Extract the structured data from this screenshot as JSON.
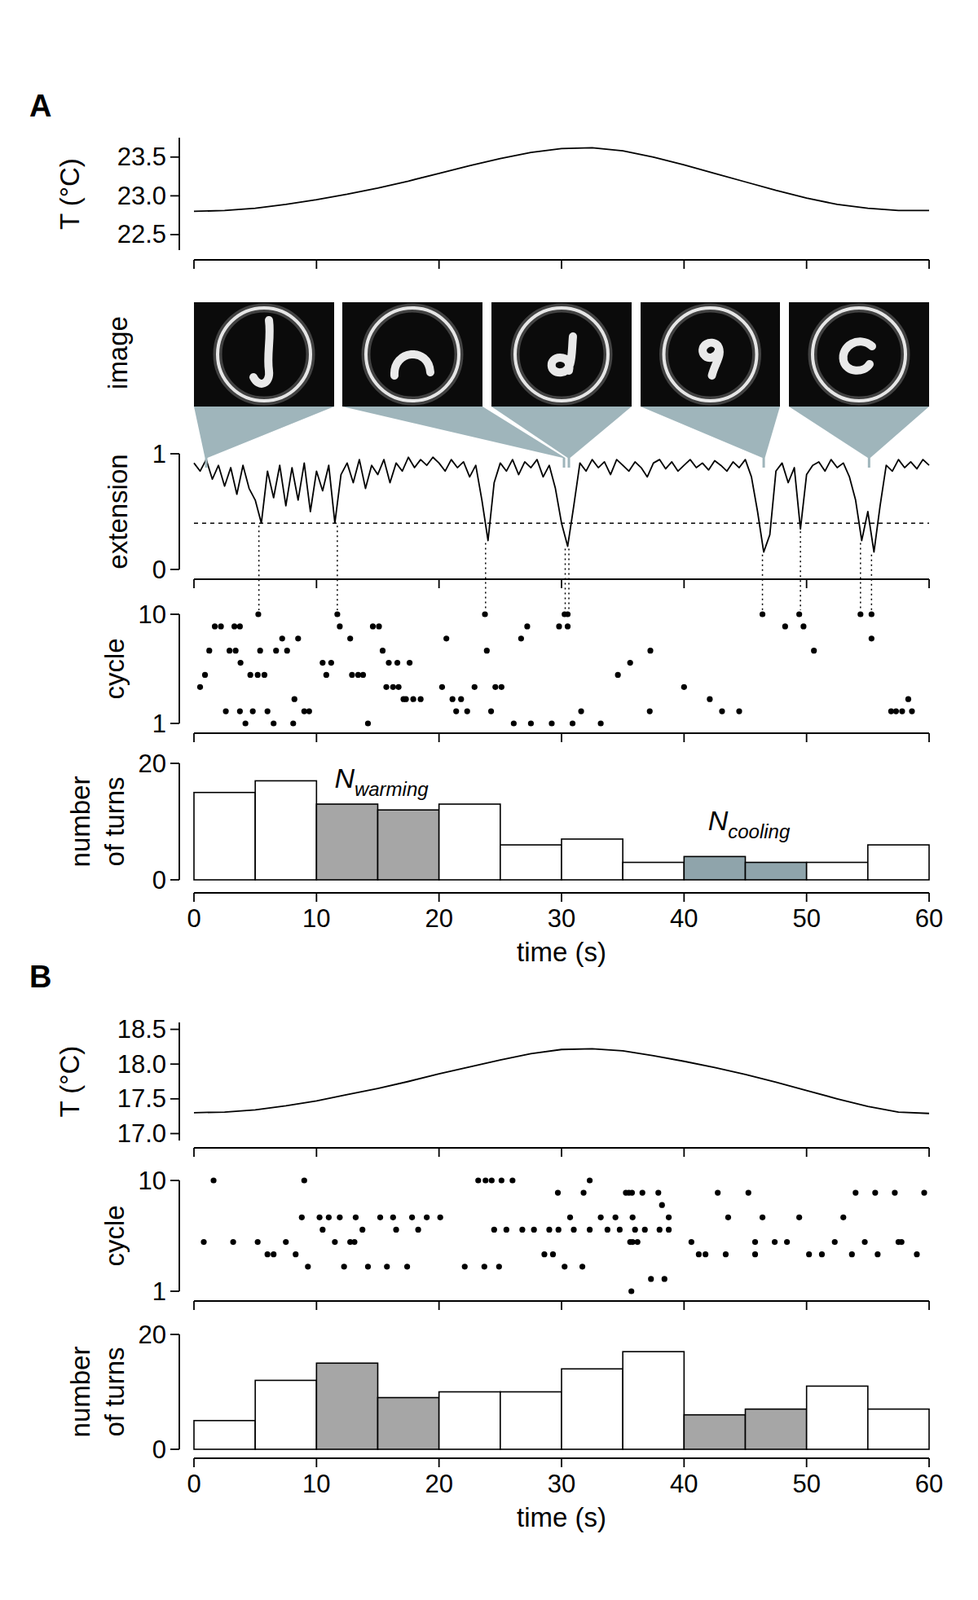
{
  "panels": [
    "A",
    "B"
  ],
  "images": {
    "label": "image",
    "times": [
      1,
      30.2,
      30.6,
      46.5,
      55.1
    ]
  },
  "chart_data": [
    {
      "type": "line",
      "ylabel": "T (°C)",
      "xlim": [
        0,
        60
      ],
      "xticks": [
        0,
        10,
        20,
        30,
        40,
        50,
        60
      ],
      "ylim": [
        22.3,
        23.75
      ],
      "yticks": [
        22.5,
        {
          "value": 23,
          "label": "23.0"
        },
        23.5
      ],
      "tick_labels": "y",
      "color": "#000000",
      "x": [
        0,
        2.5,
        5,
        7.5,
        10,
        12.5,
        15,
        17.5,
        20,
        22.5,
        25,
        27.5,
        30,
        32.5,
        35,
        37.5,
        40,
        42.5,
        45,
        47.5,
        50,
        52.5,
        55,
        57.5,
        60
      ],
      "values": [
        22.8,
        22.81,
        22.84,
        22.89,
        22.95,
        23.02,
        23.1,
        23.19,
        23.29,
        23.39,
        23.48,
        23.56,
        23.61,
        23.62,
        23.58,
        23.5,
        23.4,
        23.29,
        23.18,
        23.07,
        22.97,
        22.89,
        22.84,
        22.81,
        22.81
      ]
    },
    {
      "type": "line",
      "ylabel": "extension",
      "xlim": [
        0,
        60
      ],
      "xticks": [
        0,
        10,
        20,
        30,
        40,
        50,
        60
      ],
      "ylim": [
        0,
        1
      ],
      "yticks": [
        0,
        1
      ],
      "tick_labels": "y",
      "color": "#000000",
      "line_style": "solid",
      "reference_line": 0.4,
      "turn_times": [
        5.3,
        11.7,
        23.8,
        30.3,
        30.6,
        46.4,
        49.5,
        54.4,
        55.3
      ],
      "x": [
        0,
        0.5,
        1,
        1.5,
        2,
        2.5,
        3,
        3.5,
        4,
        4.5,
        5,
        5.5,
        6,
        6.5,
        7,
        7.5,
        8,
        8.5,
        9,
        9.5,
        10,
        10.5,
        11,
        11.5,
        12,
        12.5,
        13,
        13.5,
        14,
        14.5,
        15,
        15.5,
        16,
        16.5,
        17,
        17.5,
        18,
        18.5,
        19,
        19.5,
        20,
        20.5,
        21,
        21.5,
        22,
        22.5,
        23,
        23.5,
        24,
        24.5,
        25,
        25.5,
        26,
        26.5,
        27,
        27.5,
        28,
        28.5,
        29,
        29.5,
        30,
        30.5,
        31,
        31.5,
        32,
        32.5,
        33,
        33.5,
        34,
        34.5,
        35,
        35.5,
        36,
        36.5,
        37,
        37.5,
        38,
        38.5,
        39,
        39.5,
        40,
        40.5,
        41,
        41.5,
        42,
        42.5,
        43,
        43.5,
        44,
        44.5,
        45,
        45.5,
        46,
        46.5,
        47,
        47.5,
        48,
        48.5,
        49,
        49.5,
        50,
        50.5,
        51,
        51.5,
        52,
        52.5,
        53,
        53.5,
        54,
        54.5,
        55,
        55.5,
        56,
        56.5,
        57,
        57.5,
        58,
        58.5,
        59,
        59.5,
        60
      ],
      "values": [
        0.92,
        0.85,
        0.95,
        0.78,
        0.9,
        0.72,
        0.88,
        0.65,
        0.9,
        0.7,
        0.6,
        0.4,
        0.85,
        0.62,
        0.9,
        0.55,
        0.88,
        0.6,
        0.92,
        0.5,
        0.85,
        0.68,
        0.9,
        0.4,
        0.82,
        0.92,
        0.75,
        0.95,
        0.7,
        0.9,
        0.82,
        0.95,
        0.75,
        0.92,
        0.85,
        0.97,
        0.88,
        0.95,
        0.9,
        0.97,
        0.92,
        0.85,
        0.95,
        0.88,
        0.93,
        0.8,
        0.9,
        0.6,
        0.25,
        0.75,
        0.92,
        0.85,
        0.95,
        0.82,
        0.93,
        0.88,
        0.95,
        0.8,
        0.9,
        0.7,
        0.4,
        0.2,
        0.55,
        0.92,
        0.85,
        0.95,
        0.88,
        0.93,
        0.82,
        0.95,
        0.9,
        0.85,
        0.93,
        0.88,
        0.8,
        0.92,
        0.95,
        0.87,
        0.93,
        0.85,
        0.9,
        0.95,
        0.88,
        0.92,
        0.86,
        0.94,
        0.9,
        0.85,
        0.93,
        0.88,
        0.95,
        0.8,
        0.5,
        0.15,
        0.3,
        0.85,
        0.92,
        0.75,
        0.88,
        0.35,
        0.82,
        0.9,
        0.93,
        0.85,
        0.95,
        0.88,
        0.92,
        0.8,
        0.6,
        0.25,
        0.5,
        0.15,
        0.55,
        0.9,
        0.85,
        0.95,
        0.88,
        0.93,
        0.87,
        0.95,
        0.9
      ]
    },
    {
      "type": "scatter",
      "ylabel": "cycle",
      "xlim": [
        0,
        60
      ],
      "xticks": [
        0,
        10,
        20,
        30,
        40,
        50,
        60
      ],
      "ylim": [
        1,
        10
      ],
      "yticks": [
        1,
        10
      ],
      "tick_labels": "y",
      "color": "#000000",
      "marker": "circle",
      "x": [
        0.5,
        0.9,
        1.25,
        1.7,
        2.2,
        2.6,
        2.9,
        3.3,
        3.4,
        3.75,
        3.75,
        3.8,
        4.2,
        4.6,
        4.8,
        5.2,
        5.25,
        5.4,
        5.75,
        6,
        6.5,
        6.7,
        7.2,
        7.6,
        8.1,
        8.2,
        8.5,
        9,
        9.4,
        10.5,
        10.8,
        11.2,
        11.7,
        11.9,
        12.75,
        12.9,
        13.4,
        13.8,
        14.2,
        14.6,
        15.1,
        15.4,
        15.7,
        15.9,
        16.25,
        16.6,
        16.7,
        17.1,
        17.3,
        17.6,
        17.9,
        18.5,
        20.25,
        20.6,
        21.1,
        21.4,
        21.8,
        22.3,
        22.9,
        23.75,
        23.9,
        24.25,
        24.6,
        25.1,
        26.1,
        26.7,
        27.2,
        27.5,
        29.2,
        29.8,
        30.25,
        30.5,
        30.5,
        30.9,
        31.6,
        33.2,
        34.6,
        35.6,
        37.2,
        37.25,
        40,
        42.1,
        43.1,
        44.5,
        46.4,
        48.25,
        49.4,
        49.75,
        50.6,
        54.4,
        55.3,
        55.3,
        56.9,
        57.3,
        57.8,
        58.3,
        58.6
      ],
      "values": [
        4,
        5,
        7,
        9,
        9,
        2,
        7,
        9,
        7,
        9,
        2,
        6,
        1,
        5,
        2,
        5,
        10,
        7,
        5,
        2,
        1,
        7,
        8,
        7,
        1,
        3,
        8,
        2,
        2,
        6,
        5,
        6,
        10,
        9,
        8,
        5,
        5,
        5,
        1,
        9,
        9,
        7,
        4,
        6,
        4,
        6,
        4,
        3,
        3,
        6,
        3,
        3,
        4,
        8,
        3,
        2,
        3,
        2,
        4,
        10,
        7,
        2,
        4,
        4,
        1,
        8,
        9,
        1,
        1,
        9,
        10,
        10,
        9,
        1,
        2,
        1,
        5,
        6,
        2,
        7,
        4,
        3,
        2,
        2,
        10,
        9,
        10,
        9,
        7,
        10,
        10,
        8,
        2,
        2,
        2,
        3,
        2
      ]
    },
    {
      "type": "histogram",
      "ylabel": "number of turns",
      "xlabel": "time (s)",
      "xlim": [
        0,
        60
      ],
      "xticks": [
        0,
        10,
        20,
        30,
        40,
        50,
        60
      ],
      "ylim": [
        0,
        20
      ],
      "yticks": [
        0,
        20
      ],
      "bins": [
        0,
        5,
        10,
        15,
        20,
        25,
        30,
        35,
        40,
        45,
        50,
        55,
        60
      ],
      "values": [
        15,
        17,
        13,
        12,
        13,
        6,
        7,
        3,
        4,
        3,
        3,
        6
      ],
      "colors": [
        "#ffffff",
        "#ffffff",
        "#a6a6a6",
        "#a6a6a6",
        "#ffffff",
        "#ffffff",
        "#ffffff",
        "#ffffff",
        "#8fa4ab",
        "#8fa4ab",
        "#ffffff",
        "#ffffff"
      ],
      "annotations": [
        {
          "text": "N",
          "subscript": "warming",
          "x": 15.3,
          "y": 15.8
        },
        {
          "text": "N",
          "subscript": "cooling",
          "x": 45.3,
          "y": 8.6
        }
      ]
    },
    {
      "type": "line",
      "ylabel": "T (°C)",
      "xlim": [
        0,
        60
      ],
      "xticks": [
        0,
        10,
        20,
        30,
        40,
        50,
        60
      ],
      "ylim": [
        16.9,
        18.6
      ],
      "yticks": [
        {
          "value": 17,
          "label": "17.0"
        },
        17.5,
        {
          "value": 18,
          "label": "18.0"
        },
        18.5
      ],
      "tick_labels": "y",
      "color": "#000000",
      "x": [
        0,
        2.5,
        5,
        7.5,
        10,
        12.5,
        15,
        17.5,
        20,
        22.5,
        25,
        27.5,
        30,
        32.5,
        35,
        37.5,
        40,
        42.5,
        45,
        47.5,
        50,
        52.5,
        55,
        57.5,
        60
      ],
      "values": [
        17.3,
        17.31,
        17.34,
        17.4,
        17.47,
        17.56,
        17.65,
        17.75,
        17.86,
        17.96,
        18.06,
        18.15,
        18.21,
        18.22,
        18.19,
        18.12,
        18.04,
        17.95,
        17.85,
        17.74,
        17.62,
        17.5,
        17.39,
        17.31,
        17.29
      ]
    },
    {
      "type": "scatter",
      "ylabel": "cycle",
      "xlim": [
        0,
        60
      ],
      "xticks": [
        0,
        10,
        20,
        30,
        40,
        50,
        60
      ],
      "ylim": [
        1,
        10
      ],
      "yticks": [
        1,
        10
      ],
      "tick_labels": "y",
      "color": "#000000",
      "marker": "circle",
      "x": [
        0.8,
        1.6,
        3.2,
        5.2,
        6,
        6.5,
        7.5,
        8.3,
        8.8,
        9,
        9.3,
        10.25,
        10.5,
        11,
        11.5,
        11.9,
        12.25,
        12.75,
        13.1,
        13.2,
        13.75,
        14.2,
        15.2,
        15.75,
        16.25,
        16.5,
        17.4,
        17.8,
        18.3,
        19,
        20.1,
        22.1,
        23.2,
        23.7,
        23.8,
        24.3,
        24.5,
        24.9,
        25.1,
        25.5,
        26,
        26.8,
        27.75,
        28.6,
        29,
        29.3,
        29.7,
        29.75,
        30.25,
        30.7,
        31,
        31.7,
        31.8,
        32.3,
        32.3,
        33.2,
        33.75,
        34.4,
        34.75,
        35.25,
        35.5,
        35.6,
        35.7,
        35.75,
        35.8,
        35.8,
        36,
        36.2,
        36.6,
        36.8,
        37.3,
        37.9,
        38,
        38.2,
        38.4,
        38.75,
        38.75,
        40.6,
        41.2,
        41.75,
        42.75,
        43.4,
        43.6,
        45.25,
        45.8,
        45.8,
        46.4,
        47.4,
        48.4,
        49.4,
        50.2,
        51.25,
        52.3,
        53,
        53.7,
        54,
        54.75,
        55.6,
        55.8,
        57.2,
        57.5,
        57.75,
        59,
        59.6
      ],
      "values": [
        5,
        10,
        5,
        5,
        4,
        4,
        5,
        4,
        7,
        10,
        3,
        7,
        6,
        7,
        5,
        7,
        3,
        5,
        5,
        7,
        6,
        3,
        7,
        3,
        7,
        6,
        3,
        7,
        6,
        7,
        7,
        3,
        10,
        3,
        10,
        10,
        6,
        3,
        10,
        6,
        10,
        6,
        6,
        4,
        6,
        4,
        9,
        6,
        3,
        7,
        6,
        3,
        9,
        10,
        6,
        7,
        6,
        7,
        6,
        9,
        9,
        5,
        1,
        9,
        5,
        7,
        6,
        5,
        9,
        6,
        2,
        9,
        6,
        8,
        2,
        7,
        6,
        5,
        4,
        4,
        9,
        4,
        7,
        9,
        5,
        4,
        7,
        5,
        5,
        7,
        4,
        4,
        5,
        7,
        4,
        9,
        5,
        9,
        4,
        9,
        5,
        5,
        4,
        9
      ]
    },
    {
      "type": "histogram",
      "ylabel": "number of turns",
      "xlabel": "time (s)",
      "xlim": [
        0,
        60
      ],
      "xticks": [
        0,
        10,
        20,
        30,
        40,
        50,
        60
      ],
      "ylim": [
        0,
        20
      ],
      "yticks": [
        0,
        20
      ],
      "bins": [
        0,
        5,
        10,
        15,
        20,
        25,
        30,
        35,
        40,
        45,
        50,
        55,
        60
      ],
      "values": [
        5,
        12,
        15,
        9,
        10,
        10,
        14,
        17,
        6,
        7,
        11,
        7
      ],
      "colors": [
        "#ffffff",
        "#ffffff",
        "#a6a6a6",
        "#a6a6a6",
        "#ffffff",
        "#ffffff",
        "#ffffff",
        "#ffffff",
        "#a6a6a6",
        "#a6a6a6",
        "#ffffff",
        "#ffffff"
      ]
    }
  ]
}
